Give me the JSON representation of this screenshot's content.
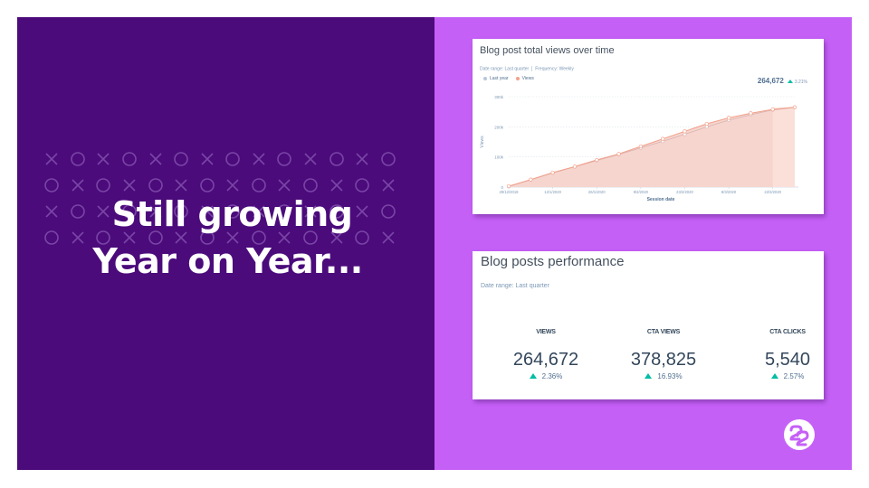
{
  "slide": {
    "headline_line1": "Still growing",
    "headline_line2": "Year on Year...",
    "colors": {
      "left_bg": "#4b0b7b",
      "right_bg": "#c560f7",
      "accent_up": "#00bda5",
      "views_line": "#f2a08a",
      "views_fill": "#f6d5ce",
      "last_year_line": "#cfa7a6"
    },
    "pattern_rows": [
      "×○×○×○×○×○×○×○",
      "○×○×○×○×○×○×○×",
      "×○×○×○×○×○×○×○",
      "○×○×○×○×○×○×○×"
    ]
  },
  "views_card": {
    "title": "Blog post total views over time",
    "date_range": "Date range: Last quarter",
    "frequency": "Frequency: Weekly",
    "legend": [
      {
        "label": "Last year",
        "color": "#b7c6dd"
      },
      {
        "label": "Views",
        "color": "#f2a08a"
      }
    ],
    "total": "264,672",
    "change": "3.21%"
  },
  "performance_card": {
    "title": "Blog posts performance",
    "date_range": "Date range: Last quarter",
    "metrics": [
      {
        "label": "VIEWS",
        "value": "264,672",
        "change": "2.36%"
      },
      {
        "label": "CTA VIEWS",
        "value": "378,825",
        "change": "16.93%"
      },
      {
        "label": "CTA CLICKS",
        "value": "5,540",
        "change": "2.57%"
      }
    ]
  },
  "chart_data": {
    "type": "area",
    "title": "Blog post total views over time",
    "xlabel": "Session date",
    "ylabel": "Views",
    "ylim": [
      0,
      300000
    ],
    "yticks": [
      "0",
      "100k",
      "200k",
      "300k"
    ],
    "xtick_labels": [
      "29/12/2019",
      "12/1/2020",
      "26/1/2020",
      "9/2/2020",
      "23/2/2020",
      "8/3/2020",
      "22/3/2020"
    ],
    "x": [
      "29/12/2019",
      "5/1/2020",
      "12/1/2020",
      "19/1/2020",
      "26/1/2020",
      "2/2/2020",
      "9/2/2020",
      "16/2/2020",
      "23/2/2020",
      "1/3/2020",
      "8/3/2020",
      "15/3/2020",
      "22/3/2020",
      "29/3/2020"
    ],
    "series": [
      {
        "name": "Views",
        "values": [
          3000,
          25000,
          48000,
          68000,
          90000,
          110000,
          135000,
          160000,
          185000,
          210000,
          230000,
          245000,
          258000,
          265000
        ]
      },
      {
        "name": "Last year",
        "values": [
          2000,
          24000,
          47000,
          67000,
          88000,
          108000,
          130000,
          152000,
          175000,
          200000,
          222000,
          240000,
          256000,
          264000
        ]
      }
    ],
    "grid": true,
    "legend_position": "top-left",
    "total": "264,672",
    "change": "3.21%"
  }
}
